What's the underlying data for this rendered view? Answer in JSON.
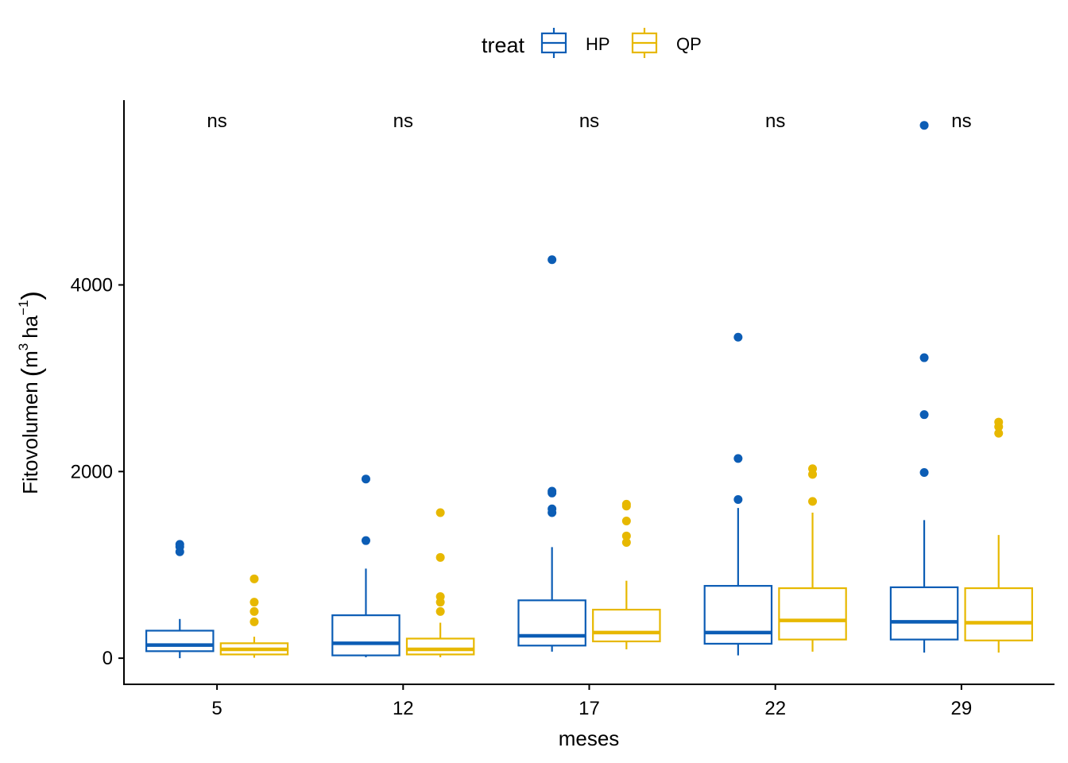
{
  "chart_data": {
    "type": "boxplot",
    "xlabel": "meses",
    "ylabel_parts": {
      "main": "Fitovolumen",
      "unit1": "m",
      "exp1": "3",
      "unit2": "ha",
      "exp2": "−1"
    },
    "legend": {
      "title": "treat",
      "position": "top",
      "entries": [
        "HP",
        "QP"
      ]
    },
    "colors": {
      "HP": "#0C5DB5",
      "QP": "#E7B800"
    },
    "categories": [
      "5",
      "12",
      "17",
      "22",
      "29"
    ],
    "ylim": [
      -280,
      5980
    ],
    "yticks": [
      0,
      2000,
      4000
    ],
    "ytick_labels": [
      "0",
      "2000",
      "4000"
    ],
    "annotations": [
      "ns",
      "ns",
      "ns",
      "ns",
      "ns"
    ],
    "series": [
      {
        "name": "HP",
        "boxes": [
          {
            "whisker_low": 0,
            "q1": 75,
            "median": 140,
            "q3": 295,
            "whisker_high": 420,
            "outliers": [
              1220,
              1195,
              1140
            ]
          },
          {
            "whisker_low": 10,
            "q1": 30,
            "median": 160,
            "q3": 460,
            "whisker_high": 960,
            "outliers": [
              1920,
              1260
            ]
          },
          {
            "whisker_low": 70,
            "q1": 135,
            "median": 240,
            "q3": 620,
            "whisker_high": 1190,
            "outliers": [
              4270,
              1790,
              1770,
              1600,
              1560
            ]
          },
          {
            "whisker_low": 30,
            "q1": 155,
            "median": 275,
            "q3": 775,
            "whisker_high": 1610,
            "outliers": [
              3440,
              2140,
              1700
            ]
          },
          {
            "whisker_low": 60,
            "q1": 200,
            "median": 390,
            "q3": 760,
            "whisker_high": 1480,
            "outliers": [
              5710,
              3220,
              2610,
              1990
            ]
          }
        ]
      },
      {
        "name": "QP",
        "boxes": [
          {
            "whisker_low": 5,
            "q1": 40,
            "median": 95,
            "q3": 160,
            "whisker_high": 230,
            "outliers": [
              850,
              600,
              500,
              390
            ]
          },
          {
            "whisker_low": 10,
            "q1": 40,
            "median": 95,
            "q3": 210,
            "whisker_high": 380,
            "outliers": [
              1560,
              1080,
              660,
              600,
              500
            ]
          },
          {
            "whisker_low": 95,
            "q1": 180,
            "median": 275,
            "q3": 520,
            "whisker_high": 830,
            "outliers": [
              1650,
              1630,
              1470,
              1310,
              1240
            ]
          },
          {
            "whisker_low": 70,
            "q1": 200,
            "median": 405,
            "q3": 750,
            "whisker_high": 1560,
            "outliers": [
              2030,
              1970,
              1680
            ]
          },
          {
            "whisker_low": 60,
            "q1": 190,
            "median": 380,
            "q3": 750,
            "whisker_high": 1320,
            "outliers": [
              2530,
              2480,
              2410
            ]
          }
        ]
      }
    ]
  }
}
